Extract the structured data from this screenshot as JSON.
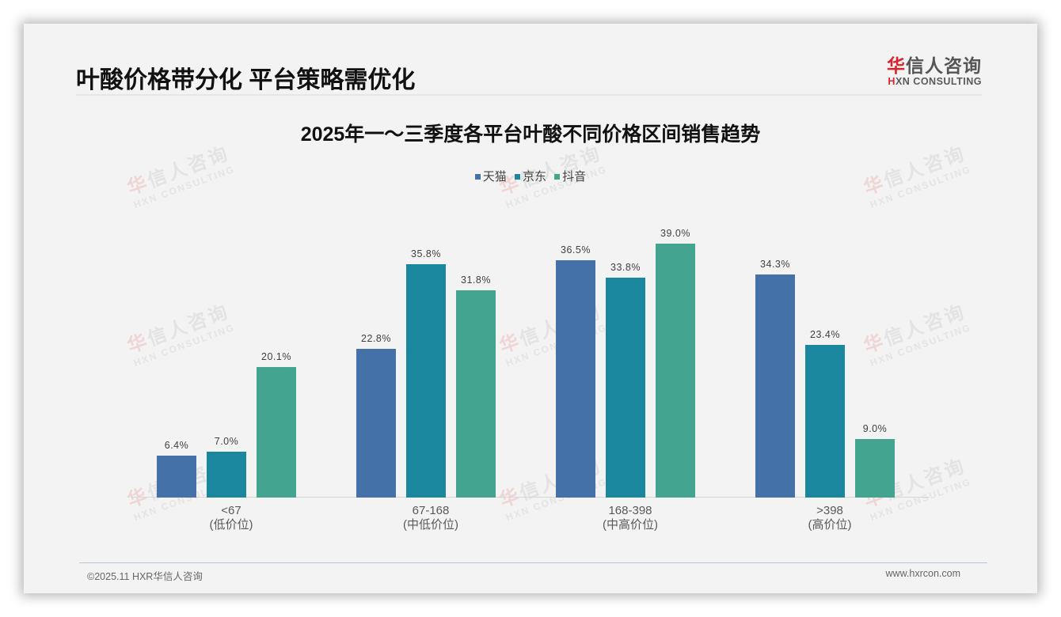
{
  "header": {
    "title": "叶酸价格带分化 平台策略需优化",
    "logo": {
      "cn_red": "华",
      "cn_rest": "信人咨询",
      "en_red": "H",
      "en_rest": "XN CONSULTING"
    }
  },
  "watermark": {
    "cn_red": "华",
    "cn_rest": "信人咨询",
    "en": "HXN CONSULTING"
  },
  "chart_data": {
    "type": "bar",
    "title": "2025年一～三季度各平台叶酸不同价格区间销售趋势",
    "xlabel": "",
    "ylabel": "",
    "ylim": [
      0,
      40
    ],
    "grid": false,
    "legend_position": "top",
    "categories": [
      "<67\n(低价位)",
      "67-168\n(中低价位)",
      "168-398\n(中高价位)",
      ">398\n(高价位)"
    ],
    "category_lines": [
      [
        "<67",
        "(低价位)"
      ],
      [
        "67-168",
        "(中低价位)"
      ],
      [
        "168-398",
        "(中高价位)"
      ],
      [
        ">398",
        "(高价位)"
      ]
    ],
    "series": [
      {
        "name": "天猫",
        "color": "#4472a8",
        "values": [
          6.4,
          22.8,
          36.5,
          34.3
        ],
        "labels": [
          "6.4%",
          "22.8%",
          "36.5%",
          "34.3%"
        ]
      },
      {
        "name": "京东",
        "color": "#1a879e",
        "values": [
          7.0,
          35.8,
          33.8,
          23.4
        ],
        "labels": [
          "7.0%",
          "35.8%",
          "33.8%",
          "23.4%"
        ]
      },
      {
        "name": "抖音",
        "color": "#43a58f",
        "values": [
          20.1,
          31.8,
          39.0,
          9.0
        ],
        "labels": [
          "20.1%",
          "31.8%",
          "39.0%",
          "9.0%"
        ]
      }
    ]
  },
  "footer": {
    "copyright": "©2025.11 HXR华信人咨询",
    "website": "www.hxrcon.com"
  }
}
